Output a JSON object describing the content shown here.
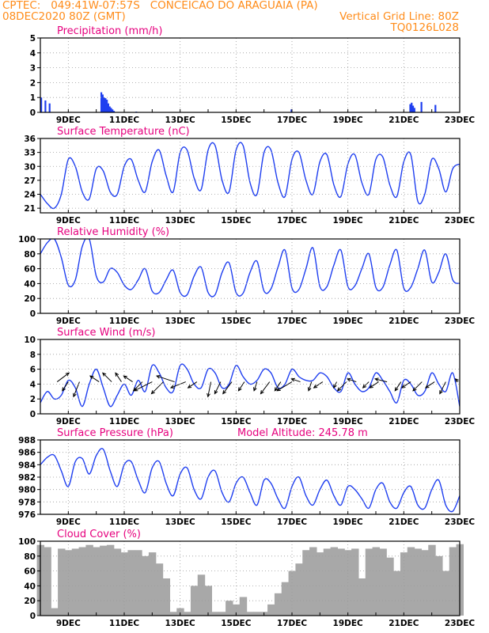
{
  "header": {
    "line1_left": "CPTEC:   049:41W-07:57S   CONCEICAO DO ARAGUAIA (PA)",
    "line2_left": "08DEC2020 80Z (GMT)",
    "line2_right": "Vertical Grid Line: 80Z",
    "line3_right": "TQ0126L028",
    "text_color": "#ff8c1a"
  },
  "colors": {
    "title": "#e6007e",
    "series": "#1f3ff0",
    "cloud": "#a8a8a8",
    "grid": "#9a9a9a",
    "frame": "#000000"
  },
  "chart_data": [
    {
      "id": "precip",
      "type": "bar",
      "title": "Precipitation (mm/h)",
      "ylim": [
        0,
        5
      ],
      "yticks": [
        0,
        1,
        2,
        3,
        4,
        5
      ],
      "xlim": [
        8.0,
        23.0
      ],
      "xticks": [
        9,
        11,
        13,
        15,
        17,
        19,
        21,
        23
      ],
      "xtick_labels": [
        "9DEC",
        "11DEC",
        "13DEC",
        "15DEC",
        "17DEC",
        "19DEC",
        "21DEC",
        "23DEC"
      ],
      "x": [
        8.0,
        8.15,
        8.3,
        10.15,
        10.2,
        10.25,
        10.3,
        10.35,
        10.4,
        10.45,
        10.5,
        10.55,
        10.6,
        11.4,
        16.95,
        21.2,
        21.25,
        21.3,
        21.35,
        21.6,
        22.1
      ],
      "values": [
        1.0,
        0.8,
        0.6,
        1.35,
        1.2,
        1.0,
        0.95,
        0.85,
        0.6,
        0.4,
        0.3,
        0.2,
        0.1,
        0.05,
        0.2,
        0.55,
        0.65,
        0.45,
        0.3,
        0.7,
        0.5
      ]
    },
    {
      "id": "temp",
      "type": "line",
      "title": "Surface Temperature (nC)",
      "ylim": [
        20,
        36
      ],
      "yticks": [
        21,
        24,
        27,
        30,
        33,
        36
      ],
      "xlim": [
        8.0,
        23.0
      ],
      "xticks": [
        9,
        11,
        13,
        15,
        17,
        19,
        21,
        23
      ],
      "xtick_labels": [
        "9DEC",
        "11DEC",
        "13DEC",
        "15DEC",
        "17DEC",
        "19DEC",
        "21DEC",
        "23DEC"
      ],
      "x": [
        8.0,
        8.25,
        8.5,
        8.75,
        9.0,
        9.25,
        9.5,
        9.75,
        10.0,
        10.25,
        10.5,
        10.75,
        11.0,
        11.25,
        11.5,
        11.75,
        12.0,
        12.25,
        12.5,
        12.75,
        13.0,
        13.25,
        13.5,
        13.75,
        14.0,
        14.25,
        14.5,
        14.75,
        15.0,
        15.25,
        15.5,
        15.75,
        16.0,
        16.25,
        16.5,
        16.75,
        17.0,
        17.25,
        17.5,
        17.75,
        18.0,
        18.25,
        18.5,
        18.75,
        19.0,
        19.25,
        19.5,
        19.75,
        20.0,
        20.25,
        20.5,
        20.75,
        21.0,
        21.25,
        21.5,
        21.75,
        22.0,
        22.25,
        22.5,
        22.75,
        23.0
      ],
      "values": [
        24.0,
        22.0,
        21.0,
        24.0,
        31.5,
        30.0,
        24.5,
        23.0,
        29.5,
        29.0,
        24.5,
        24.0,
        30.0,
        31.5,
        27.0,
        24.5,
        31.0,
        33.5,
        28.0,
        24.5,
        33.0,
        33.5,
        27.5,
        25.0,
        33.5,
        34.5,
        27.0,
        24.5,
        33.5,
        34.5,
        26.5,
        24.0,
        33.0,
        33.5,
        26.5,
        23.5,
        31.5,
        33.0,
        27.0,
        24.0,
        31.0,
        32.5,
        26.0,
        23.5,
        30.5,
        32.5,
        26.5,
        24.0,
        31.5,
        32.0,
        26.0,
        23.5,
        31.0,
        32.5,
        22.5,
        24.0,
        31.5,
        29.5,
        24.5,
        29.5,
        30.5
      ]
    },
    {
      "id": "rh",
      "type": "line",
      "title": "Relative Humidity (%)",
      "ylim": [
        0,
        100
      ],
      "yticks": [
        0,
        20,
        40,
        60,
        80,
        100
      ],
      "xlim": [
        8.0,
        23.0
      ],
      "xticks": [
        9,
        11,
        13,
        15,
        17,
        19,
        21,
        23
      ],
      "xtick_labels": [
        "9DEC",
        "11DEC",
        "13DEC",
        "15DEC",
        "17DEC",
        "19DEC",
        "21DEC",
        "23DEC"
      ],
      "x": [
        8.0,
        8.25,
        8.5,
        8.75,
        9.0,
        9.25,
        9.5,
        9.75,
        10.0,
        10.25,
        10.5,
        10.75,
        11.0,
        11.25,
        11.5,
        11.75,
        12.0,
        12.25,
        12.5,
        12.75,
        13.0,
        13.25,
        13.5,
        13.75,
        14.0,
        14.25,
        14.5,
        14.75,
        15.0,
        15.25,
        15.5,
        15.75,
        16.0,
        16.25,
        16.5,
        16.75,
        17.0,
        17.25,
        17.5,
        17.75,
        18.0,
        18.25,
        18.5,
        18.75,
        19.0,
        19.25,
        19.5,
        19.75,
        20.0,
        20.25,
        20.5,
        20.75,
        21.0,
        21.25,
        21.5,
        21.75,
        22.0,
        22.25,
        22.5,
        22.75,
        23.0
      ],
      "values": [
        80.0,
        95.0,
        100.0,
        75.0,
        38.0,
        45.0,
        90.0,
        100.0,
        50.0,
        42.0,
        60.0,
        55.0,
        38.0,
        32.0,
        45.0,
        60.0,
        30.0,
        28.0,
        45.0,
        58.0,
        28.0,
        25.0,
        50.0,
        62.0,
        28.0,
        25.0,
        55.0,
        68.0,
        28.0,
        27.0,
        55.0,
        70.0,
        30.0,
        33.0,
        62.0,
        85.0,
        34.0,
        32.0,
        60.0,
        88.0,
        36.0,
        36.0,
        65.0,
        85.0,
        36.0,
        37.0,
        60.0,
        80.0,
        35.0,
        35.0,
        65.0,
        85.0,
        34.0,
        35.0,
        60.0,
        85.0,
        42.0,
        55.0,
        80.0,
        45.0,
        40.0
      ]
    },
    {
      "id": "wind",
      "type": "line",
      "title": "Surface Wind (m/s)",
      "ylim": [
        0,
        10
      ],
      "yticks": [
        0,
        2,
        4,
        6,
        8,
        10
      ],
      "xlim": [
        8.0,
        23.0
      ],
      "xticks": [
        9,
        11,
        13,
        15,
        17,
        19,
        21,
        23
      ],
      "xtick_labels": [
        "9DEC",
        "11DEC",
        "13DEC",
        "15DEC",
        "17DEC",
        "19DEC",
        "21DEC",
        "23DEC"
      ],
      "x": [
        8.0,
        8.25,
        8.5,
        8.75,
        9.0,
        9.25,
        9.5,
        9.75,
        10.0,
        10.25,
        10.5,
        10.75,
        11.0,
        11.25,
        11.5,
        11.75,
        12.0,
        12.25,
        12.5,
        12.75,
        13.0,
        13.25,
        13.5,
        13.75,
        14.0,
        14.25,
        14.5,
        14.75,
        15.0,
        15.25,
        15.5,
        15.75,
        16.0,
        16.25,
        16.5,
        16.75,
        17.0,
        17.25,
        17.5,
        17.75,
        18.0,
        18.25,
        18.5,
        18.75,
        19.0,
        19.25,
        19.5,
        19.75,
        20.0,
        20.25,
        20.5,
        20.75,
        21.0,
        21.25,
        21.5,
        21.75,
        22.0,
        22.25,
        22.5,
        22.75,
        23.0
      ],
      "values": [
        1.5,
        3.0,
        2.0,
        2.5,
        4.5,
        3.5,
        1.0,
        4.0,
        6.0,
        3.5,
        1.0,
        2.5,
        4.0,
        2.5,
        4.5,
        3.0,
        6.5,
        5.5,
        3.5,
        3.0,
        6.5,
        6.0,
        4.0,
        3.5,
        6.0,
        5.5,
        3.5,
        4.0,
        6.5,
        5.0,
        4.0,
        4.5,
        6.0,
        5.5,
        3.5,
        4.0,
        6.0,
        5.0,
        4.5,
        4.5,
        5.5,
        5.0,
        3.5,
        3.0,
        5.5,
        4.0,
        3.0,
        3.5,
        5.5,
        4.5,
        3.0,
        1.5,
        4.5,
        4.0,
        2.5,
        3.0,
        5.5,
        4.0,
        3.0,
        5.5,
        1.0
      ],
      "vectors": [
        {
          "t": 8.6,
          "u": 2.0,
          "v": 1.5
        },
        {
          "t": 9.0,
          "u": -1.0,
          "v": -1.5
        },
        {
          "t": 9.4,
          "u": -1.0,
          "v": -2.5
        },
        {
          "t": 10.1,
          "u": -1.5,
          "v": 1.0
        },
        {
          "t": 10.55,
          "u": -1.5,
          "v": 1.5
        },
        {
          "t": 10.9,
          "u": -1.0,
          "v": 1.5
        },
        {
          "t": 11.3,
          "u": -1.5,
          "v": 1.0
        },
        {
          "t": 11.65,
          "u": -1.5,
          "v": -1.5
        },
        {
          "t": 12.0,
          "u": -3.0,
          "v": -1.5
        },
        {
          "t": 12.4,
          "u": -2.0,
          "v": -2.0
        },
        {
          "t": 12.8,
          "u": -3.0,
          "v": 1.0
        },
        {
          "t": 13.2,
          "u": -2.5,
          "v": -1.0
        },
        {
          "t": 13.6,
          "u": -1.5,
          "v": -1.0
        },
        {
          "t": 14.1,
          "u": -0.5,
          "v": -2.5
        },
        {
          "t": 14.45,
          "u": -1.0,
          "v": -2.0
        },
        {
          "t": 14.85,
          "u": -1.5,
          "v": -2.0
        },
        {
          "t": 15.3,
          "u": -1.0,
          "v": -1.5
        },
        {
          "t": 15.75,
          "u": -0.5,
          "v": -1.5
        },
        {
          "t": 16.2,
          "u": -1.5,
          "v": -2.0
        },
        {
          "t": 16.6,
          "u": -1.0,
          "v": -1.5
        },
        {
          "t": 17.0,
          "u": -2.5,
          "v": -1.5
        },
        {
          "t": 17.3,
          "u": -1.5,
          "v": 0.5
        },
        {
          "t": 17.7,
          "u": -0.5,
          "v": -1.5
        },
        {
          "t": 18.1,
          "u": -1.5,
          "v": -1.0
        },
        {
          "t": 18.6,
          "u": -0.5,
          "v": -1.0
        },
        {
          "t": 18.95,
          "u": -1.5,
          "v": -1.5
        },
        {
          "t": 19.3,
          "u": -1.5,
          "v": 0.5
        },
        {
          "t": 19.75,
          "u": -1.0,
          "v": -1.0
        },
        {
          "t": 20.1,
          "u": -1.5,
          "v": -1.0
        },
        {
          "t": 20.4,
          "u": -2.0,
          "v": 0.5
        },
        {
          "t": 20.9,
          "u": -1.0,
          "v": -1.5
        },
        {
          "t": 21.25,
          "u": -1.5,
          "v": -1.0
        },
        {
          "t": 21.65,
          "u": -1.5,
          "v": -1.5
        },
        {
          "t": 22.1,
          "u": -1.5,
          "v": -1.0
        },
        {
          "t": 22.5,
          "u": -1.0,
          "v": -2.0
        },
        {
          "t": 22.95,
          "u": -0.5,
          "v": 0.5
        }
      ]
    },
    {
      "id": "pres",
      "type": "line",
      "title": "Surface Pressure (hPa)",
      "annotation": "Model Altitude: 245.78 m",
      "ylim": [
        976,
        988
      ],
      "yticks": [
        976,
        978,
        980,
        982,
        984,
        986,
        988
      ],
      "xlim": [
        8.0,
        23.0
      ],
      "xticks": [
        9,
        11,
        13,
        15,
        17,
        19,
        21,
        23
      ],
      "xtick_labels": [
        "9DEC",
        "11DEC",
        "13DEC",
        "15DEC",
        "17DEC",
        "19DEC",
        "21DEC",
        "23DEC"
      ],
      "x": [
        8.0,
        8.25,
        8.5,
        8.75,
        9.0,
        9.25,
        9.5,
        9.75,
        10.0,
        10.25,
        10.5,
        10.75,
        11.0,
        11.25,
        11.5,
        11.75,
        12.0,
        12.25,
        12.5,
        12.75,
        13.0,
        13.25,
        13.5,
        13.75,
        14.0,
        14.25,
        14.5,
        14.75,
        15.0,
        15.25,
        15.5,
        15.75,
        16.0,
        16.25,
        16.5,
        16.75,
        17.0,
        17.25,
        17.5,
        17.75,
        18.0,
        18.25,
        18.5,
        18.75,
        19.0,
        19.25,
        19.5,
        19.75,
        20.0,
        20.25,
        20.5,
        20.75,
        21.0,
        21.25,
        21.5,
        21.75,
        22.0,
        22.25,
        22.5,
        22.75,
        23.0
      ],
      "values": [
        984.0,
        985.2,
        985.5,
        983.0,
        980.5,
        984.5,
        985.0,
        982.5,
        985.5,
        986.5,
        983.0,
        980.5,
        984.0,
        984.5,
        981.5,
        979.5,
        983.5,
        984.5,
        981.0,
        979.0,
        982.5,
        983.5,
        980.0,
        978.5,
        982.0,
        983.0,
        979.5,
        978.0,
        981.0,
        982.0,
        979.5,
        977.5,
        981.5,
        981.0,
        978.5,
        977.0,
        980.5,
        982.0,
        979.0,
        977.5,
        980.0,
        981.5,
        979.0,
        977.5,
        980.5,
        980.0,
        978.5,
        977.0,
        980.0,
        981.0,
        978.0,
        977.0,
        979.5,
        980.5,
        977.5,
        977.0,
        980.0,
        981.5,
        977.5,
        976.5,
        979.0
      ]
    },
    {
      "id": "cloud",
      "type": "area",
      "title": "Cloud Cover (%)",
      "ylim": [
        0,
        100
      ],
      "yticks": [
        0,
        20,
        40,
        60,
        80,
        100
      ],
      "xlim": [
        8.0,
        23.0
      ],
      "xticks": [
        9,
        11,
        13,
        15,
        17,
        19,
        21,
        23
      ],
      "xtick_labels": [
        "9DEC",
        "11DEC",
        "13DEC",
        "15DEC",
        "17DEC",
        "19DEC",
        "21DEC",
        "23DEC"
      ],
      "x": [
        8.0,
        8.25,
        8.5,
        8.75,
        9.0,
        9.25,
        9.5,
        9.75,
        10.0,
        10.25,
        10.5,
        10.75,
        11.0,
        11.25,
        11.5,
        11.75,
        12.0,
        12.25,
        12.5,
        12.75,
        13.0,
        13.25,
        13.5,
        13.75,
        14.0,
        14.25,
        14.5,
        14.75,
        15.0,
        15.25,
        15.5,
        15.75,
        16.0,
        16.25,
        16.5,
        16.75,
        17.0,
        17.25,
        17.5,
        17.75,
        18.0,
        18.25,
        18.5,
        18.75,
        19.0,
        19.25,
        19.5,
        19.75,
        20.0,
        20.25,
        20.5,
        20.75,
        21.0,
        21.25,
        21.5,
        21.75,
        22.0,
        22.25,
        22.5,
        22.75,
        23.0
      ],
      "values": [
        95.0,
        92.0,
        10.0,
        90.0,
        88.0,
        90.0,
        92.0,
        95.0,
        92.0,
        94.0,
        95.0,
        90.0,
        85.0,
        88.0,
        88.0,
        80.0,
        85.0,
        70.0,
        50.0,
        5.0,
        10.0,
        5.0,
        40.0,
        55.0,
        40.0,
        5.0,
        5.0,
        20.0,
        15.0,
        25.0,
        5.0,
        5.0,
        5.0,
        15.0,
        30.0,
        45.0,
        60.0,
        70.0,
        88.0,
        92.0,
        85.0,
        90.0,
        92.0,
        90.0,
        88.0,
        90.0,
        50.0,
        90.0,
        92.0,
        90.0,
        78.0,
        60.0,
        85.0,
        92.0,
        90.0,
        88.0,
        95.0,
        80.0,
        60.0,
        92.0,
        96.0
      ]
    }
  ]
}
